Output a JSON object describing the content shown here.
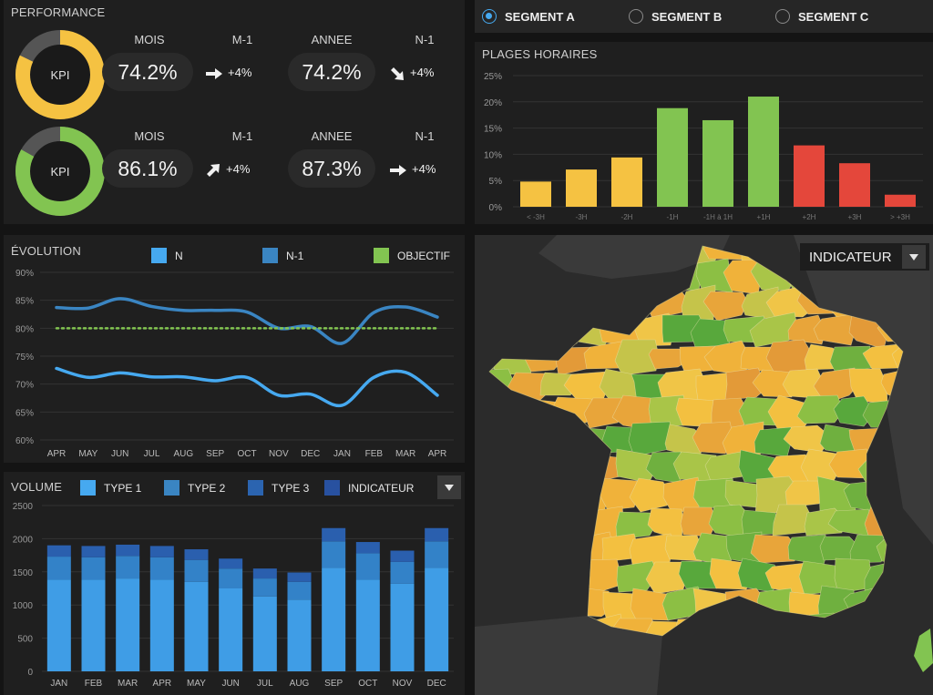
{
  "performance": {
    "title": "PERFORMANCE",
    "rows": [
      {
        "kpi_label": "KPI",
        "ring_fraction": 0.82,
        "ring_color": "#f5c242",
        "mois_label": "MOIS",
        "mois_value": "74.2%",
        "m1_label": "M-1",
        "m1_value": "+4%",
        "m1_arrow": "right-arrow-icon",
        "annee_label": "ANNEE",
        "annee_value": "74.2%",
        "n1_label": "N-1",
        "n1_value": "+4%",
        "n1_arrow": "down-right-arrow-icon"
      },
      {
        "kpi_label": "KPI",
        "ring_fraction": 0.83,
        "ring_color": "#82c451",
        "mois_label": "MOIS",
        "mois_value": "86.1%",
        "m1_label": "M-1",
        "m1_value": "+4%",
        "m1_arrow": "up-right-arrow-icon",
        "annee_label": "ANNEE",
        "annee_value": "87.3%",
        "n1_label": "N-1",
        "n1_value": "+4%",
        "n1_arrow": "right-arrow-icon"
      }
    ]
  },
  "segments": {
    "options": [
      {
        "label": "SEGMENT A",
        "selected": true
      },
      {
        "label": "SEGMENT B",
        "selected": false
      },
      {
        "label": "SEGMENT C",
        "selected": false
      }
    ]
  },
  "plages": {
    "title": "PLAGES HORAIRES",
    "chart_data": {
      "type": "bar",
      "categories": [
        "< -3H",
        "-3H",
        "-2H",
        "-1H",
        "-1H à 1H",
        "+1H",
        "+2H",
        "+3H",
        "> +3H"
      ],
      "values": [
        4.8,
        7.1,
        9.4,
        18.8,
        16.5,
        21.0,
        11.7,
        8.3,
        2.3
      ],
      "colors": [
        "#f5c242",
        "#f5c242",
        "#f5c242",
        "#82c451",
        "#82c451",
        "#82c451",
        "#e4473b",
        "#e4473b",
        "#e4473b"
      ],
      "ylim": [
        0,
        25
      ],
      "yticks": [
        "0%",
        "5%",
        "10%",
        "15%",
        "20%",
        "25%"
      ]
    }
  },
  "evolution": {
    "title": "ÉVOLUTION",
    "legend": [
      {
        "label": "N",
        "color": "#46a9f0"
      },
      {
        "label": "N-1",
        "color": "#3a85c2"
      },
      {
        "label": "OBJECTIF",
        "color": "#82c451"
      }
    ],
    "chart_data": {
      "type": "line",
      "categories": [
        "APR",
        "MAY",
        "JUN",
        "JUL",
        "AUG",
        "SEP",
        "OCT",
        "NOV",
        "DEC",
        "JAN",
        "FEB",
        "MAR",
        "APR"
      ],
      "ylim": [
        60,
        90
      ],
      "yticks": [
        "60%",
        "65%",
        "70%",
        "75%",
        "80%",
        "85%",
        "90%"
      ],
      "series": [
        {
          "name": "N",
          "values": [
            72.8,
            71.2,
            72.0,
            71.3,
            71.3,
            70.6,
            71.2,
            68.0,
            68.2,
            66.2,
            71.2,
            72.1,
            68.0
          ]
        },
        {
          "name": "N-1",
          "values": [
            83.7,
            83.6,
            85.3,
            83.9,
            83.2,
            83.2,
            82.9,
            80.0,
            80.3,
            77.3,
            82.8,
            83.8,
            82.0
          ]
        },
        {
          "name": "OBJECTIF",
          "values": [
            80,
            80,
            80,
            80,
            80,
            80,
            80,
            80,
            80,
            80,
            80,
            80,
            80
          ]
        }
      ]
    }
  },
  "volume": {
    "title": "VOLUME",
    "legend": [
      {
        "label": "TYPE 1",
        "color": "#46a9f0"
      },
      {
        "label": "TYPE 2",
        "color": "#3a85c2"
      },
      {
        "label": "TYPE 3",
        "color": "#2b64b0"
      },
      {
        "label": "INDICATEUR",
        "color": "#2851a0"
      }
    ],
    "chart_data": {
      "type": "bar",
      "stacked": true,
      "categories": [
        "JAN",
        "FEB",
        "MAR",
        "APR",
        "MAY",
        "JUN",
        "JUL",
        "AUG",
        "SEP",
        "OCT",
        "NOV",
        "DEC"
      ],
      "ylim": [
        0,
        2500
      ],
      "yticks": [
        "0",
        "500",
        "1000",
        "1500",
        "2000",
        "2500"
      ],
      "series": [
        {
          "name": "TYPE 1",
          "values": [
            1380,
            1380,
            1400,
            1380,
            1350,
            1250,
            1130,
            1080,
            1560,
            1380,
            1320,
            1560
          ]
        },
        {
          "name": "TYPE 2",
          "values": [
            350,
            340,
            340,
            340,
            330,
            300,
            270,
            270,
            400,
            400,
            330,
            400
          ]
        },
        {
          "name": "TYPE 3",
          "values": [
            170,
            170,
            170,
            170,
            160,
            150,
            150,
            140,
            200,
            170,
            170,
            200
          ]
        }
      ]
    }
  },
  "map": {
    "dropdown_label": "INDICATEUR",
    "colors": [
      "#f0b23a",
      "#f3c040",
      "#e8a53a",
      "#c5c44a",
      "#a9c548",
      "#8cbf44",
      "#6fb03f",
      "#58a83c",
      "#f0c547",
      "#e39a38"
    ]
  }
}
